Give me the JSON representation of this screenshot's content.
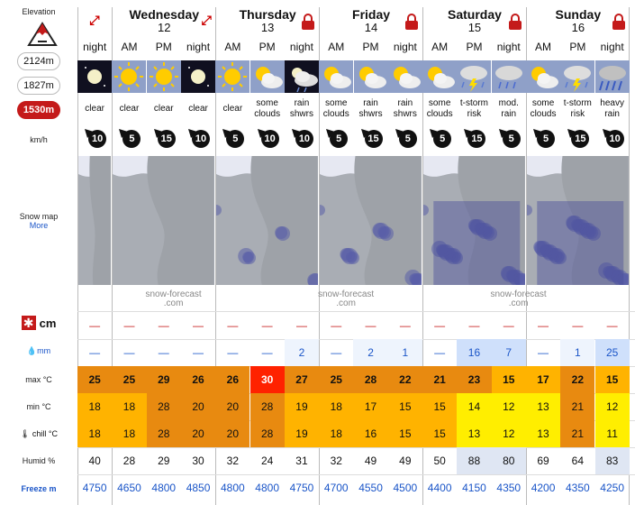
{
  "labels": {
    "elevation": "Elevation",
    "snowmap": "Snow map",
    "more": "More",
    "kmh": "km/h",
    "cm": "cm",
    "mm": "mm",
    "max": "max °C",
    "min": "min °C",
    "chill": "chill °C",
    "humid": "Humid %",
    "freeze": "Freeze m"
  },
  "elevations": [
    {
      "label": "2124m",
      "active": false
    },
    {
      "label": "1827m",
      "active": false
    },
    {
      "label": "1530m",
      "active": true
    }
  ],
  "days": [
    {
      "name": "",
      "num": "",
      "cols": 1,
      "lock": false,
      "expand_right": true
    },
    {
      "name": "Wednesday",
      "num": "12",
      "cols": 3,
      "lock": false,
      "expand_right": true
    },
    {
      "name": "Thursday",
      "num": "13",
      "cols": 3,
      "lock": true
    },
    {
      "name": "Friday",
      "num": "14",
      "cols": 3,
      "lock": true
    },
    {
      "name": "Saturday",
      "num": "15",
      "cols": 3,
      "lock": true
    },
    {
      "name": "Sunday",
      "num": "16",
      "cols": 3,
      "lock": true
    }
  ],
  "periods": [
    "night",
    "AM",
    "PM",
    "night",
    "AM",
    "PM",
    "night",
    "AM",
    "PM",
    "night",
    "AM",
    "PM",
    "night",
    "AM",
    "PM",
    "night"
  ],
  "icons": [
    "moon",
    "sun",
    "sun",
    "moon",
    "sun",
    "sun-cloud",
    "moon-cloud",
    "sun-cloud",
    "sun-cloud",
    "sun-cloud",
    "sun-cloud",
    "storm",
    "rain",
    "sun-cloud",
    "storm",
    "rain-heavy"
  ],
  "summary": [
    [
      "clear"
    ],
    [
      "clear"
    ],
    [
      "clear"
    ],
    [
      "clear"
    ],
    [
      "clear"
    ],
    [
      "some",
      "clouds"
    ],
    [
      "rain",
      "shwrs"
    ],
    [
      "some",
      "clouds"
    ],
    [
      "rain",
      "shwrs"
    ],
    [
      "rain",
      "shwrs"
    ],
    [
      "some",
      "clouds"
    ],
    [
      "t-storm",
      "risk"
    ],
    [
      "mod.",
      "rain"
    ],
    [
      "some",
      "clouds"
    ],
    [
      "t-storm",
      "risk"
    ],
    [
      "heavy",
      "rain"
    ]
  ],
  "wind": [
    "10",
    "5",
    "15",
    "10",
    "5",
    "10",
    "10",
    "5",
    "15",
    "5",
    "5",
    "15",
    "5",
    "5",
    "15",
    "10"
  ],
  "snow": [
    "—",
    "—",
    "—",
    "—",
    "—",
    "—",
    "—",
    "—",
    "—",
    "—",
    "—",
    "—",
    "—",
    "—",
    "—",
    "—"
  ],
  "rain": [
    "—",
    "—",
    "—",
    "—",
    "—",
    "—",
    "2",
    "—",
    "2",
    "1",
    "—",
    "16",
    "7",
    "—",
    "1",
    "25"
  ],
  "max": [
    "25",
    "25",
    "29",
    "26",
    "26",
    "30",
    "27",
    "25",
    "28",
    "22",
    "21",
    "23",
    "15",
    "17",
    "22",
    "15"
  ],
  "min": [
    "18",
    "18",
    "28",
    "20",
    "20",
    "28",
    "19",
    "18",
    "17",
    "15",
    "15",
    "14",
    "12",
    "13",
    "21",
    "12"
  ],
  "chill": [
    "18",
    "18",
    "28",
    "20",
    "20",
    "28",
    "19",
    "18",
    "16",
    "15",
    "15",
    "13",
    "12",
    "13",
    "21",
    "11"
  ],
  "humid": [
    "40",
    "28",
    "29",
    "30",
    "32",
    "24",
    "31",
    "32",
    "49",
    "49",
    "50",
    "88",
    "80",
    "69",
    "64",
    "83"
  ],
  "freeze": [
    "4750",
    "4650",
    "4800",
    "4850",
    "4800",
    "4800",
    "4750",
    "4700",
    "4550",
    "4500",
    "4400",
    "4150",
    "4350",
    "4200",
    "4350",
    "4250"
  ],
  "watermark": [
    "snow-forecast",
    ".com"
  ],
  "colors": {
    "red": "#c41a1a",
    "hot": "#ff2200",
    "orange": "#e88a10",
    "lightorange": "#ffb300",
    "yellow": "#ffee00",
    "paleyellow": "#fff38a",
    "blue": "#1a55c8",
    "rainblue": "#d8e6fb"
  }
}
